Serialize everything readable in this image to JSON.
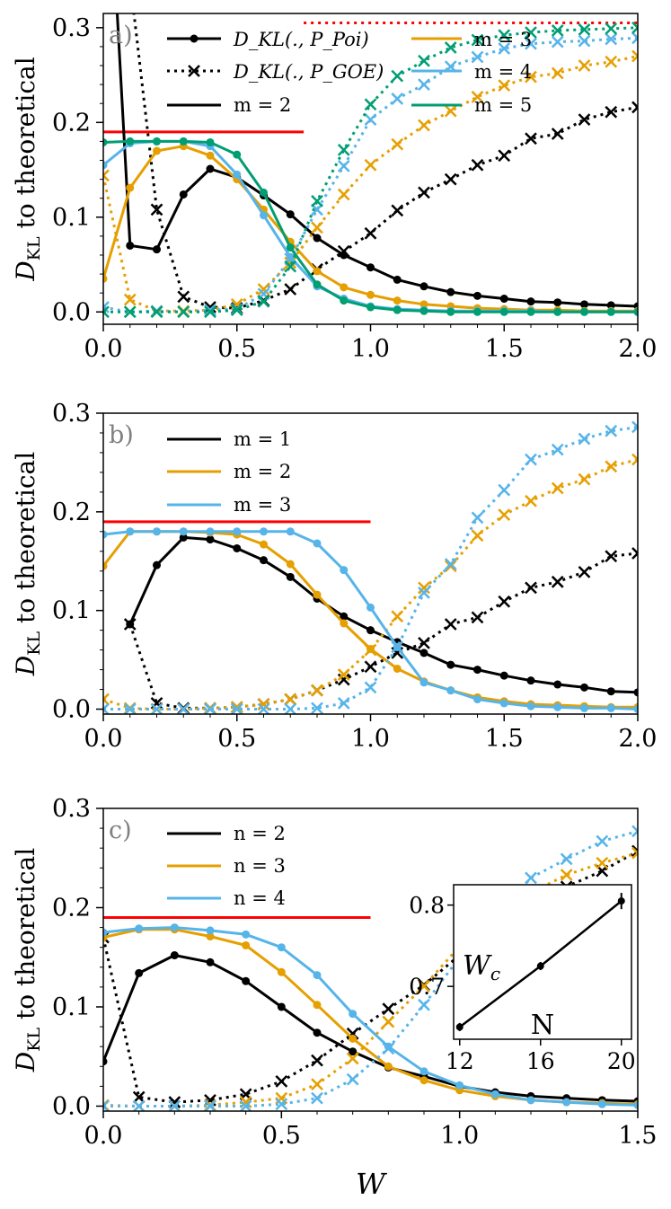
{
  "colors": {
    "black": "#000000",
    "orange": "#E69F00",
    "sky": "#56B4E9",
    "green": "#009E73",
    "red": "#FF0000"
  },
  "chart_data": [
    {
      "type": "line",
      "panel_label": "a)",
      "xlabel": "",
      "ylabel": "D_KL to theoretical",
      "xlim": [
        0,
        2
      ],
      "ylim": [
        -0.013,
        0.315
      ],
      "xticks": [
        "0.0",
        "0.5",
        "1.0",
        "1.5",
        "2.0"
      ],
      "yticks": [
        "0.0",
        "0.1",
        "0.2",
        "0.3"
      ],
      "legend_placement": "top",
      "legend": {
        "poi": "D_KL(., P_Poi)",
        "goe": "D_KL(., P_GOE)",
        "series_labels": [
          "m = 2",
          "m = 3",
          "m = 4",
          "m = 5"
        ]
      },
      "reference_lines": [
        {
          "name": "poisson-reference",
          "color": "#FF0000",
          "style": "solid",
          "y": 0.19,
          "x": [
            0,
            0.75
          ]
        },
        {
          "name": "goe-reference",
          "color": "#FF0000",
          "style": "dotted",
          "y": 0.305,
          "x": [
            0.75,
            2.0
          ]
        }
      ],
      "x": [
        0,
        0.1,
        0.2,
        0.3,
        0.4,
        0.5,
        0.6,
        0.7,
        0.8,
        0.9,
        1.0,
        1.1,
        1.2,
        1.3,
        1.4,
        1.5,
        1.6,
        1.7,
        1.8,
        1.9,
        2.0
      ],
      "series": [
        {
          "name": "m = 2",
          "color": "#000000",
          "poi": [
            0.58,
            0.07,
            0.066,
            0.124,
            0.151,
            0.142,
            0.123,
            0.103,
            0.078,
            0.06,
            0.047,
            0.034,
            0.027,
            0.021,
            0.017,
            0.014,
            0.011,
            0.01,
            0.008,
            0.007,
            0.006
          ],
          "goe": [
            0.48,
            0.35,
            0.108,
            0.016,
            0.005,
            0.004,
            0.012,
            0.024,
            0.045,
            0.064,
            0.083,
            0.107,
            0.126,
            0.14,
            0.155,
            0.165,
            0.183,
            0.188,
            0.203,
            0.211,
            0.216
          ]
        },
        {
          "name": "m = 3",
          "color": "#E69F00",
          "poi": [
            0.035,
            0.131,
            0.17,
            0.175,
            0.165,
            0.14,
            0.108,
            0.074,
            0.043,
            0.026,
            0.018,
            0.012,
            0.008,
            0.006,
            0.004,
            0.003,
            0.002,
            0.002,
            0.001,
            0.001,
            0.001
          ],
          "goe": [
            0.144,
            0.013,
            0.001,
            0.001,
            0.002,
            0.008,
            0.024,
            0.052,
            0.089,
            0.124,
            0.155,
            0.177,
            0.197,
            0.212,
            0.227,
            0.239,
            0.248,
            0.252,
            0.26,
            0.264,
            0.27
          ]
        },
        {
          "name": "m = 4",
          "color": "#56B4E9",
          "poi": [
            0.155,
            0.178,
            0.18,
            0.18,
            0.175,
            0.145,
            0.102,
            0.058,
            0.027,
            0.014,
            0.006,
            0.003,
            0.002,
            0.001,
            0.001,
            0.001,
            0.001,
            0.0,
            0.0,
            0.0,
            0.0
          ],
          "goe": [
            0.005,
            0.0,
            0.001,
            0.0,
            0.002,
            0.003,
            0.019,
            0.056,
            0.108,
            0.154,
            0.203,
            0.225,
            0.24,
            0.259,
            0.269,
            0.278,
            0.283,
            0.285,
            0.286,
            0.288,
            0.289
          ]
        },
        {
          "name": "m = 5",
          "color": "#009E73",
          "poi": [
            0.179,
            0.18,
            0.18,
            0.18,
            0.179,
            0.166,
            0.126,
            0.068,
            0.029,
            0.012,
            0.005,
            0.002,
            0.001,
            0.0,
            0.0,
            0.0,
            0.0,
            0.0,
            0.0,
            0.0,
            0.0
          ],
          "goe": [
            0.0,
            0.0,
            0.0,
            0.0,
            0.0,
            0.002,
            0.011,
            0.048,
            0.117,
            0.171,
            0.219,
            0.249,
            0.265,
            0.279,
            0.287,
            0.292,
            0.295,
            0.297,
            0.298,
            0.299,
            0.3
          ]
        }
      ]
    },
    {
      "type": "line",
      "panel_label": "b)",
      "xlabel": "",
      "ylabel": "D_KL to theoretical",
      "xlim": [
        0,
        2
      ],
      "ylim": [
        -0.005,
        0.3
      ],
      "xticks": [
        "0.0",
        "0.5",
        "1.0",
        "1.5",
        "2.0"
      ],
      "yticks": [
        "0.0",
        "0.1",
        "0.2",
        "0.3"
      ],
      "legend_placement": "top-left",
      "reference_lines": [
        {
          "name": "poisson-reference",
          "color": "#FF0000",
          "style": "solid",
          "y": 0.19,
          "x": [
            0,
            1.0
          ]
        }
      ],
      "x": [
        0,
        0.1,
        0.2,
        0.3,
        0.4,
        0.5,
        0.6,
        0.7,
        0.8,
        0.9,
        1.0,
        1.1,
        1.2,
        1.3,
        1.4,
        1.5,
        1.6,
        1.7,
        1.8,
        1.9,
        2.0
      ],
      "series": [
        {
          "name": "m = 1",
          "color": "#000000",
          "poi": [
            null,
            0.086,
            0.146,
            0.174,
            0.172,
            0.163,
            0.151,
            0.134,
            0.112,
            0.094,
            0.08,
            0.068,
            0.057,
            0.045,
            0.04,
            0.034,
            0.029,
            0.025,
            0.022,
            0.018,
            0.017
          ],
          "goe": [
            null,
            0.086,
            0.006,
            0.001,
            0.001,
            0.002,
            0.005,
            0.01,
            0.019,
            0.03,
            0.043,
            0.057,
            0.067,
            0.086,
            0.093,
            0.109,
            0.123,
            0.129,
            0.139,
            0.155,
            0.158
          ]
        },
        {
          "name": "m = 2",
          "color": "#E69F00",
          "poi": [
            0.145,
            0.18,
            0.18,
            0.18,
            0.179,
            0.177,
            0.167,
            0.147,
            0.116,
            0.087,
            0.061,
            0.041,
            0.028,
            0.019,
            0.012,
            0.008,
            0.005,
            0.004,
            0.003,
            0.002,
            0.002
          ],
          "goe": [
            0.01,
            0.001,
            0.0,
            0.0,
            0.001,
            0.002,
            0.005,
            0.01,
            0.019,
            0.035,
            0.06,
            0.094,
            0.123,
            0.145,
            0.176,
            0.197,
            0.211,
            0.224,
            0.233,
            0.246,
            0.253
          ]
        },
        {
          "name": "m = 3",
          "color": "#56B4E9",
          "poi": [
            0.177,
            0.18,
            0.18,
            0.18,
            0.18,
            0.18,
            0.18,
            0.18,
            0.168,
            0.141,
            0.103,
            0.063,
            0.027,
            0.019,
            0.01,
            0.006,
            0.003,
            0.002,
            0.001,
            0.001,
            0.0
          ],
          "goe": [
            0.0,
            0.0,
            0.0,
            0.0,
            0.0,
            0.0,
            0.0,
            0.0,
            0.001,
            0.006,
            0.022,
            0.063,
            0.118,
            0.147,
            0.194,
            0.222,
            0.253,
            0.263,
            0.274,
            0.282,
            0.286
          ]
        }
      ]
    },
    {
      "type": "line",
      "panel_label": "c)",
      "xlabel": "W",
      "ylabel": "D_KL to theoretical",
      "xlim": [
        0,
        1.5
      ],
      "ylim": [
        -0.005,
        0.3
      ],
      "xticks": [
        "0.0",
        "0.5",
        "1.0",
        "1.5"
      ],
      "yticks": [
        "0.0",
        "0.1",
        "0.2",
        "0.3"
      ],
      "legend_placement": "top-left",
      "reference_lines": [
        {
          "name": "poisson-reference",
          "color": "#FF0000",
          "style": "solid",
          "y": 0.19,
          "x": [
            0,
            0.75
          ]
        },
        {
          "name": "goe-reference",
          "color": "#FF0000",
          "style": "dotted",
          "y": 0.302,
          "x": [
            0.02,
            1.5
          ]
        }
      ],
      "x": [
        0,
        0.1,
        0.2,
        0.3,
        0.4,
        0.5,
        0.6,
        0.7,
        0.8,
        0.9,
        1.0,
        1.1,
        1.2,
        1.3,
        1.4,
        1.5
      ],
      "series": [
        {
          "name": "n = 2",
          "color": "#000000",
          "poi": [
            0.045,
            0.134,
            0.152,
            0.145,
            0.126,
            0.1,
            0.074,
            0.055,
            0.039,
            0.03,
            0.02,
            0.014,
            0.01,
            0.008,
            0.006,
            0.005
          ],
          "goe": [
            0.17,
            0.009,
            0.004,
            0.006,
            0.012,
            0.025,
            0.046,
            0.073,
            0.098,
            0.122,
            0.152,
            0.175,
            0.199,
            0.221,
            0.237,
            0.257
          ]
        },
        {
          "name": "n = 3",
          "color": "#E69F00",
          "poi": [
            0.17,
            0.178,
            0.178,
            0.171,
            0.162,
            0.135,
            0.102,
            0.068,
            0.04,
            0.026,
            0.016,
            0.01,
            0.006,
            0.004,
            0.003,
            0.002
          ],
          "goe": [
            0.001,
            0.0,
            0.0,
            0.001,
            0.004,
            0.008,
            0.022,
            0.048,
            0.085,
            0.121,
            0.161,
            0.195,
            0.215,
            0.233,
            0.245,
            0.255
          ]
        },
        {
          "name": "n = 4",
          "color": "#56B4E9",
          "poi": [
            0.175,
            0.179,
            0.18,
            0.177,
            0.173,
            0.16,
            0.132,
            0.093,
            0.06,
            0.035,
            0.021,
            0.012,
            0.006,
            0.004,
            0.002,
            0.001
          ],
          "goe": [
            0.0,
            0.0,
            0.0,
            0.0,
            0.0,
            0.002,
            0.008,
            0.027,
            0.058,
            0.102,
            0.15,
            0.189,
            0.23,
            0.249,
            0.267,
            0.277
          ]
        }
      ],
      "inset": {
        "type": "line",
        "xlabel": "N",
        "ylabel": "W_c",
        "x": [
          12,
          16,
          20
        ],
        "y": [
          0.65,
          0.725,
          0.805
        ],
        "yerr": [
          0.005,
          0.005,
          0.01
        ],
        "xticks": [
          "12",
          "16",
          "20"
        ],
        "yticks": [
          "0.7",
          "0.8"
        ],
        "xlim": [
          11.7,
          20.5
        ],
        "ylim": [
          0.635,
          0.825
        ]
      }
    }
  ]
}
